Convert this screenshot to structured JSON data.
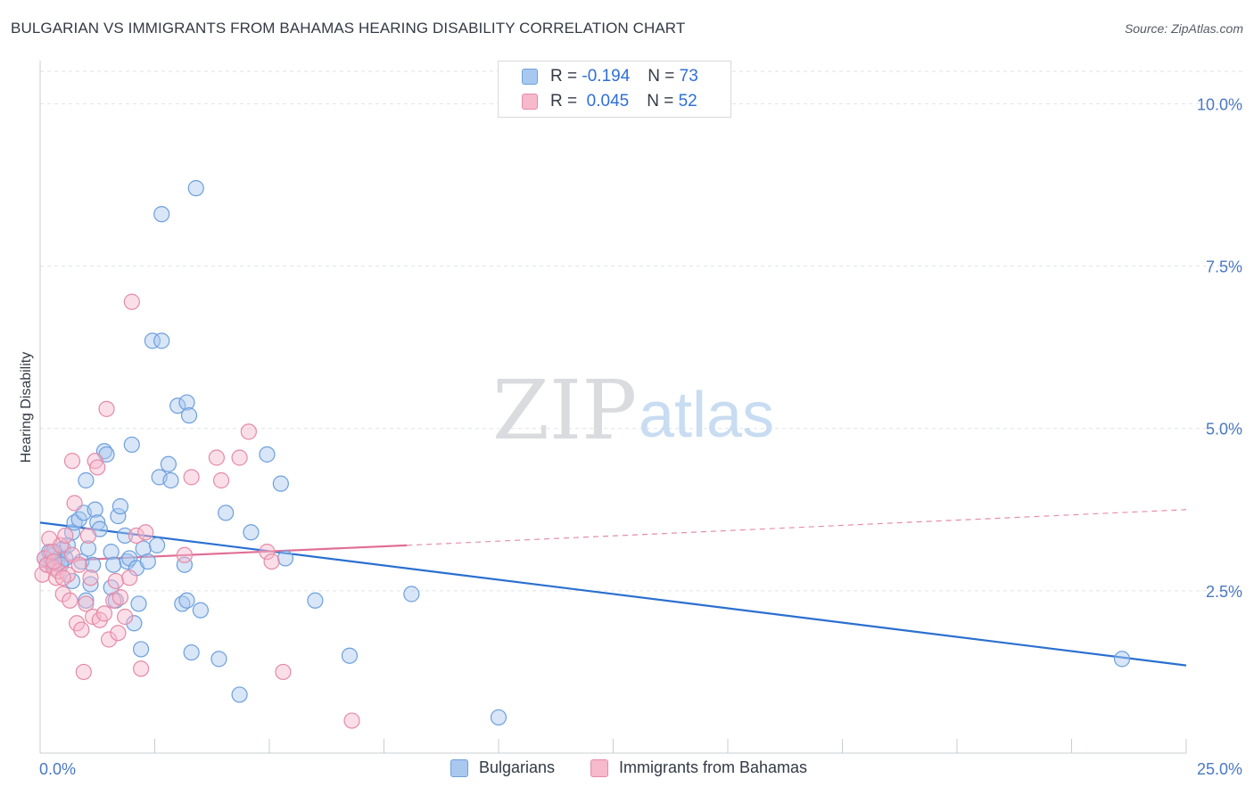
{
  "header": {
    "title": "BULGARIAN VS IMMIGRANTS FROM BAHAMAS HEARING DISABILITY CORRELATION CHART",
    "source": "Source: ZipAtlas.com"
  },
  "legend": {
    "rows": [
      {
        "r_label": "R =",
        "r_value": "-0.194",
        "n_label": "N =",
        "n_value": "73",
        "color": "#a9c8f0",
        "border": "#6d9fdc"
      },
      {
        "r_label": "R =",
        "r_value": "0.045",
        "n_label": "N =",
        "n_value": "52",
        "color": "#f7b9cc",
        "border": "#e58aa6"
      }
    ]
  },
  "bottom_legend": {
    "items": [
      {
        "label": "Bulgarians",
        "color": "#a9c8f0",
        "border": "#6d9fdc"
      },
      {
        "label": "Immigrants from Bahamas",
        "color": "#f7b9cc",
        "border": "#e58aa6"
      }
    ]
  },
  "watermark": {
    "zip": "ZIP",
    "atlas": "atlas"
  },
  "chart_data": {
    "type": "scatter",
    "title": "BULGARIAN VS IMMIGRANTS FROM BAHAMAS HEARING DISABILITY CORRELATION CHART",
    "xlabel": "",
    "ylabel": "Hearing Disability",
    "xlim": [
      0,
      25
    ],
    "ylim": [
      0,
      10.5
    ],
    "x_tick_labels": [
      "0.0%",
      "25.0%"
    ],
    "y_ticks": [
      2.5,
      5.0,
      7.5,
      10.0
    ],
    "y_tick_labels": [
      "2.5%",
      "5.0%",
      "7.5%",
      "10.0%"
    ],
    "grid": true,
    "series": [
      {
        "name": "Bulgarians",
        "color": "#6d9fdc",
        "fill": "#a9c8f0",
        "trend": {
          "x0": 0,
          "y0": 3.55,
          "x1": 25,
          "y1": 1.35,
          "color": "#2a6fd0"
        },
        "points": [
          [
            0.1,
            3.0
          ],
          [
            0.15,
            2.9
          ],
          [
            0.2,
            3.1
          ],
          [
            0.25,
            2.95
          ],
          [
            0.3,
            3.05
          ],
          [
            0.35,
            2.85
          ],
          [
            0.4,
            3.0
          ],
          [
            0.45,
            2.95
          ],
          [
            0.5,
            3.15
          ],
          [
            0.55,
            3.0
          ],
          [
            0.6,
            3.2
          ],
          [
            0.7,
            2.65
          ],
          [
            0.7,
            3.4
          ],
          [
            0.75,
            3.55
          ],
          [
            0.85,
            3.6
          ],
          [
            0.9,
            2.95
          ],
          [
            0.95,
            3.7
          ],
          [
            1.0,
            4.2
          ],
          [
            1.0,
            2.35
          ],
          [
            1.05,
            3.15
          ],
          [
            1.1,
            2.6
          ],
          [
            1.15,
            2.9
          ],
          [
            1.2,
            3.75
          ],
          [
            1.25,
            3.55
          ],
          [
            1.3,
            3.45
          ],
          [
            1.4,
            4.65
          ],
          [
            1.45,
            4.6
          ],
          [
            1.55,
            3.1
          ],
          [
            1.55,
            2.55
          ],
          [
            1.6,
            2.9
          ],
          [
            1.65,
            2.35
          ],
          [
            1.7,
            3.65
          ],
          [
            1.75,
            3.8
          ],
          [
            1.85,
            3.35
          ],
          [
            1.9,
            2.95
          ],
          [
            1.95,
            3.0
          ],
          [
            2.0,
            4.75
          ],
          [
            2.05,
            2.0
          ],
          [
            2.1,
            2.85
          ],
          [
            2.15,
            2.3
          ],
          [
            2.2,
            1.6
          ],
          [
            2.25,
            3.15
          ],
          [
            2.35,
            2.95
          ],
          [
            2.45,
            6.35
          ],
          [
            2.55,
            3.2
          ],
          [
            2.6,
            4.25
          ],
          [
            2.65,
            6.35
          ],
          [
            2.65,
            8.3
          ],
          [
            2.8,
            4.45
          ],
          [
            2.85,
            4.2
          ],
          [
            3.0,
            5.35
          ],
          [
            3.1,
            2.3
          ],
          [
            3.15,
            2.9
          ],
          [
            3.2,
            5.4
          ],
          [
            3.2,
            2.35
          ],
          [
            3.25,
            5.2
          ],
          [
            3.3,
            1.55
          ],
          [
            3.4,
            8.7
          ],
          [
            3.5,
            2.2
          ],
          [
            3.9,
            1.45
          ],
          [
            4.05,
            3.7
          ],
          [
            4.35,
            0.9
          ],
          [
            4.6,
            3.4
          ],
          [
            4.95,
            4.6
          ],
          [
            5.25,
            4.15
          ],
          [
            5.35,
            3.0
          ],
          [
            6.0,
            2.35
          ],
          [
            6.75,
            1.5
          ],
          [
            8.1,
            2.45
          ],
          [
            10.0,
            0.55
          ],
          [
            23.6,
            1.45
          ],
          [
            0.3,
            3.1
          ],
          [
            0.45,
            2.9
          ]
        ]
      },
      {
        "name": "Immigrants from Bahamas",
        "color": "#e58aa6",
        "fill": "#f7b9cc",
        "trend": {
          "x0": 0,
          "y0": 2.95,
          "x1": 8.0,
          "y1": 3.2,
          "color": "#e06f95",
          "dash_x1": 25,
          "dash_y1": 3.75
        },
        "points": [
          [
            0.05,
            2.75
          ],
          [
            0.1,
            3.0
          ],
          [
            0.15,
            2.9
          ],
          [
            0.2,
            3.3
          ],
          [
            0.25,
            3.1
          ],
          [
            0.3,
            2.85
          ],
          [
            0.35,
            2.7
          ],
          [
            0.4,
            2.8
          ],
          [
            0.45,
            3.2
          ],
          [
            0.5,
            2.45
          ],
          [
            0.55,
            3.35
          ],
          [
            0.6,
            2.75
          ],
          [
            0.65,
            2.35
          ],
          [
            0.7,
            3.05
          ],
          [
            0.7,
            4.5
          ],
          [
            0.75,
            3.85
          ],
          [
            0.8,
            2.0
          ],
          [
            0.85,
            2.9
          ],
          [
            0.9,
            1.9
          ],
          [
            0.95,
            1.25
          ],
          [
            1.0,
            2.3
          ],
          [
            1.05,
            3.35
          ],
          [
            1.1,
            2.7
          ],
          [
            1.15,
            2.1
          ],
          [
            1.2,
            4.5
          ],
          [
            1.25,
            4.4
          ],
          [
            1.3,
            2.05
          ],
          [
            1.4,
            2.15
          ],
          [
            1.45,
            5.3
          ],
          [
            1.5,
            1.75
          ],
          [
            1.6,
            2.35
          ],
          [
            1.65,
            2.65
          ],
          [
            1.7,
            1.85
          ],
          [
            1.75,
            2.4
          ],
          [
            1.85,
            2.1
          ],
          [
            1.95,
            2.7
          ],
          [
            2.0,
            6.95
          ],
          [
            2.1,
            3.35
          ],
          [
            2.2,
            1.3
          ],
          [
            2.3,
            3.4
          ],
          [
            3.15,
            3.05
          ],
          [
            3.3,
            4.25
          ],
          [
            3.85,
            4.55
          ],
          [
            3.95,
            4.2
          ],
          [
            4.35,
            4.55
          ],
          [
            4.55,
            4.95
          ],
          [
            4.95,
            3.1
          ],
          [
            5.05,
            2.95
          ],
          [
            5.3,
            1.25
          ],
          [
            6.8,
            0.5
          ],
          [
            0.3,
            2.95
          ],
          [
            0.5,
            2.7
          ]
        ]
      }
    ]
  }
}
